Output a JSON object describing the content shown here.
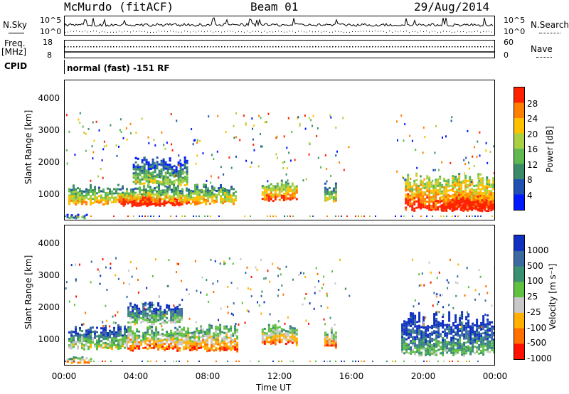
{
  "header": {
    "title": "McMurdo (fitACF)",
    "beam": "Beam 01",
    "date": "29/Aug/2014"
  },
  "top_panel": {
    "nsky_label": "N.Sky",
    "nsearch_label": "N.Search",
    "left_ticks": [
      "10^5",
      "10^0"
    ],
    "right_ticks": [
      "10^5",
      "10^0"
    ],
    "freq_label": "Freq.",
    "freq_unit": "[MHz]",
    "freq_ticks": [
      "18",
      "8"
    ],
    "nave_label": "Nave",
    "nave_ticks": [
      "60",
      "0"
    ],
    "cpid_label": "CPID",
    "cpid_value": "normal (fast) -151 RF"
  },
  "chart_data": [
    {
      "type": "heatmap",
      "name": "power",
      "ylabel": "Slant Range [km]",
      "xlabel": "",
      "y_ticks": [
        "1000",
        "2000",
        "3000",
        "4000"
      ],
      "ylim": [
        200,
        4600
      ],
      "xlim": [
        0,
        24
      ],
      "colorbar_label": "Power [dB]",
      "colorbar_ticks": [
        "4",
        "8",
        "12",
        "16",
        "20",
        "24",
        "28"
      ],
      "colorbar_colors": [
        "#0019ff",
        "#2050b0",
        "#3a8a6a",
        "#5fb850",
        "#a8d040",
        "#ffc000",
        "#ff8000",
        "#ff2000"
      ],
      "patches": [
        {
          "t0": 0.2,
          "t1": 9.6,
          "r0": 700,
          "r1": 1350,
          "level": 0.55
        },
        {
          "t0": 3.0,
          "t1": 6.5,
          "r0": 650,
          "r1": 1050,
          "level": 0.9
        },
        {
          "t0": 3.8,
          "t1": 6.8,
          "r0": 1300,
          "r1": 2200,
          "level": 0.35
        },
        {
          "t0": 11.0,
          "t1": 13.0,
          "r0": 800,
          "r1": 1500,
          "level": 0.7
        },
        {
          "t0": 14.5,
          "t1": 15.2,
          "r0": 750,
          "r1": 1400,
          "level": 0.45
        },
        {
          "t0": 19.0,
          "t1": 24.0,
          "r0": 500,
          "r1": 1700,
          "level": 0.75
        },
        {
          "t0": 21.0,
          "t1": 24.0,
          "r0": 500,
          "r1": 1100,
          "level": 0.95
        },
        {
          "t0": 0.1,
          "t1": 1.2,
          "r0": 250,
          "r1": 400,
          "level": 0.3
        }
      ]
    },
    {
      "type": "heatmap",
      "name": "velocity",
      "ylabel": "Slant Range [km]",
      "xlabel": "Time UT",
      "x_ticks": [
        "00:00",
        "04:00",
        "08:00",
        "12:00",
        "16:00",
        "20:00",
        "00:00"
      ],
      "y_ticks": [
        "1000",
        "2000",
        "3000",
        "4000"
      ],
      "ylim": [
        200,
        4600
      ],
      "xlim": [
        0,
        24
      ],
      "colorbar_label": "Velocity [m s⁻¹]",
      "colorbar_ticks": [
        "1000",
        "500",
        "100",
        "25",
        "-25",
        "-100",
        "-500",
        "-1000"
      ],
      "colorbar_colors": [
        "#1030c0",
        "#3a6aa0",
        "#3a9070",
        "#60c040",
        "#c8c8c8",
        "#ffb000",
        "#ff7000",
        "#ff1000"
      ],
      "patches": [
        {
          "t0": 0.2,
          "t1": 3.5,
          "r0": 700,
          "r1": 1500,
          "level": 0.35
        },
        {
          "t0": 3.5,
          "t1": 9.6,
          "r0": 650,
          "r1": 1500,
          "level": 0.6
        },
        {
          "t0": 3.5,
          "t1": 6.5,
          "r0": 1500,
          "r1": 2200,
          "level": 0.3
        },
        {
          "t0": 11.0,
          "t1": 13.0,
          "r0": 850,
          "r1": 1500,
          "level": 0.6
        },
        {
          "t0": 14.5,
          "t1": 15.2,
          "r0": 750,
          "r1": 1400,
          "level": 0.65
        },
        {
          "t0": 18.8,
          "t1": 24.0,
          "r0": 500,
          "r1": 1900,
          "level": 0.2
        },
        {
          "t0": 0.1,
          "t1": 1.5,
          "r0": 250,
          "r1": 500,
          "level": 0.65
        }
      ]
    }
  ]
}
